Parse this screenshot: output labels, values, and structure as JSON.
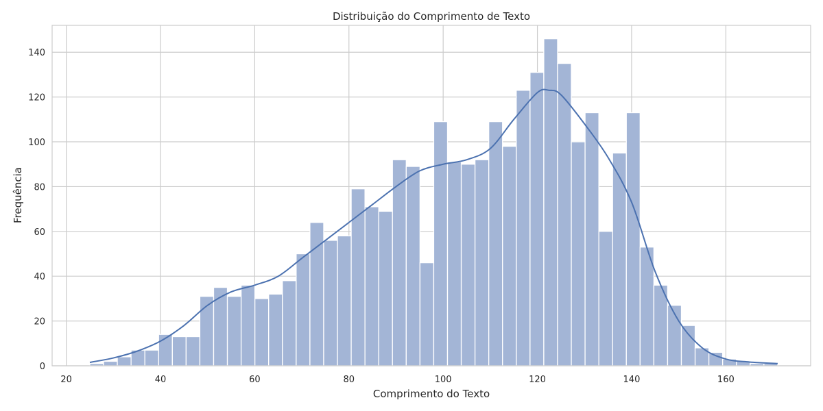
{
  "chart_data": {
    "type": "bar",
    "title": "Distribuição do Comprimento de Texto",
    "xlabel": "Comprimento do Texto",
    "ylabel": "Frequência",
    "xlim": [
      17,
      178
    ],
    "ylim": [
      0,
      152
    ],
    "x_ticks": [
      20,
      40,
      60,
      80,
      100,
      120,
      140,
      160
    ],
    "y_ticks": [
      0,
      20,
      40,
      60,
      80,
      100,
      120,
      140
    ],
    "grid": true,
    "bar_color": "#a3b5d6",
    "line_color": "#4c72b0",
    "bins": {
      "start": 25,
      "width": 2.92,
      "counts": [
        1,
        2,
        4,
        7,
        7,
        14,
        13,
        13,
        31,
        35,
        31,
        36,
        30,
        32,
        38,
        50,
        64,
        56,
        58,
        79,
        71,
        69,
        92,
        89,
        46,
        109,
        91,
        90,
        92,
        109,
        98,
        123,
        131,
        146,
        135,
        100,
        113,
        60,
        95,
        113,
        53,
        36,
        27,
        18,
        8,
        6,
        3,
        2,
        1,
        1
      ]
    },
    "kde": {
      "x": [
        25,
        30,
        35,
        40,
        45,
        50,
        55,
        60,
        65,
        70,
        75,
        80,
        85,
        90,
        95,
        100,
        105,
        110,
        115,
        120,
        122.5,
        125,
        130,
        135,
        140,
        145,
        150,
        155,
        160,
        165,
        171
      ],
      "y": [
        1.5,
        3.5,
        6.5,
        11,
        18,
        27,
        33,
        36,
        40,
        48,
        56,
        64,
        72,
        80,
        87,
        90,
        92,
        97,
        110,
        122,
        123,
        121,
        108,
        93,
        73,
        42,
        20,
        8,
        3,
        1.7,
        1
      ]
    }
  }
}
